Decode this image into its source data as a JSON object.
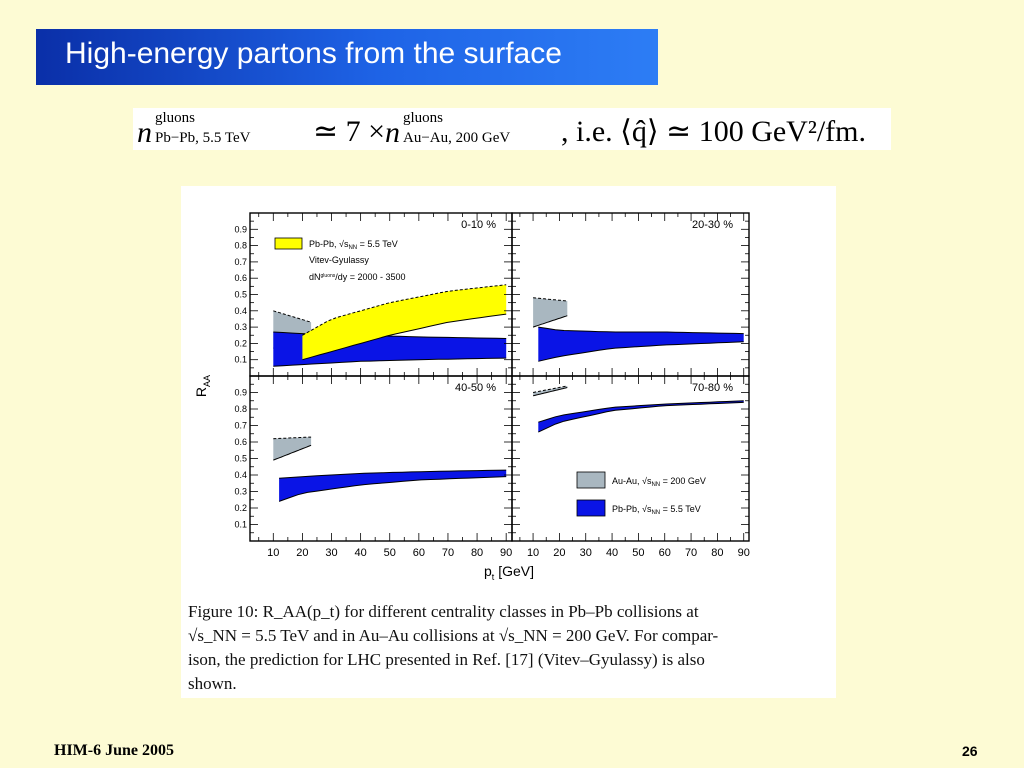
{
  "slide": {
    "title": "High-energy partons from the surface",
    "footer_left": "HIM-6 June 2005",
    "page_number": "26"
  },
  "formula": {
    "lhs_n": "n",
    "lhs_sup": "gluons",
    "lhs_sub": "Pb−Pb, 5.5 TeV",
    "relation": "≃ 7 ×",
    "rhs_n": "n",
    "rhs_sup": "gluons",
    "rhs_sub": "Au−Au, 200 GeV",
    "tail": ", i.e. ⟨q̂⟩ ≃ 100 GeV²/fm."
  },
  "figure": {
    "ylabel": "R",
    "ylabel_sub": "AA",
    "xlabel": "p",
    "xlabel_sub": "t",
    "xlabel_unit": " [GeV]",
    "yticks": [
      "0.1",
      "0.2",
      "0.3",
      "0.4",
      "0.5",
      "0.6",
      "0.7",
      "0.8",
      "0.9"
    ],
    "xticks": [
      "10",
      "20",
      "30",
      "40",
      "50",
      "60",
      "70",
      "80",
      "90"
    ],
    "panels": [
      "0-10 %",
      "20-30 %",
      "40-50 %",
      "70-80 %"
    ],
    "legend_top": {
      "line1": "Pb-Pb,  √s",
      "line1_sub": "NN",
      "line1_end": " = 5.5 TeV",
      "line2": "Vitev-Gyulassy",
      "line3": "dN",
      "line3_sup": "gluons",
      "line3_end": "/dy = 2000 - 3500"
    },
    "legend_bottom": [
      {
        "text": "Au-Au,  √s",
        "sub": "NN",
        "end": " = 200 GeV",
        "color": "#a9b7c0"
      },
      {
        "text": "Pb-Pb,  √s",
        "sub": "NN",
        "end": " = 5.5 TeV",
        "color": "#0a14e6"
      }
    ],
    "caption": {
      "line1": "Figure 10:  R_AA(p_t) for different centrality classes in Pb–Pb collisions at",
      "line2": "√s_NN = 5.5 TeV and in Au–Au collisions at √s_NN = 200 GeV. For compar-",
      "line3": "ison, the prediction for LHC presented in Ref. [17] (Vitev–Gyulassy) is also",
      "line4": "shown."
    }
  },
  "chart_data": {
    "type": "area",
    "xlabel": "p_t [GeV]",
    "ylabel": "R_AA",
    "xlim": [
      2,
      92
    ],
    "ylim": [
      0,
      1
    ],
    "panels": [
      {
        "name": "0-10 %",
        "series": [
          {
            "name": "Au-Au, √sNN = 200 GeV",
            "color": "#a9b7c0",
            "x": [
              10,
              23
            ],
            "upper": [
              0.4,
              0.33
            ],
            "lower": [
              0.17,
              0.25
            ]
          },
          {
            "name": "Pb-Pb, √sNN = 5.5 TeV",
            "color": "#0a14e6",
            "x": [
              10,
              20,
              40,
              60,
              90
            ],
            "upper": [
              0.27,
              0.26,
              0.25,
              0.24,
              0.23
            ],
            "lower": [
              0.06,
              0.07,
              0.09,
              0.1,
              0.11
            ]
          },
          {
            "name": "Vitev-Gyulassy",
            "color": "#ffff00",
            "x": [
              20,
              30,
              50,
              70,
              90
            ],
            "upper": [
              0.25,
              0.35,
              0.45,
              0.52,
              0.56
            ],
            "lower": [
              0.1,
              0.15,
              0.25,
              0.33,
              0.38
            ]
          }
        ]
      },
      {
        "name": "20-30 %",
        "series": [
          {
            "name": "Au-Au, √sNN = 200 GeV",
            "color": "#a9b7c0",
            "x": [
              10,
              23
            ],
            "upper": [
              0.48,
              0.46
            ],
            "lower": [
              0.3,
              0.37
            ]
          },
          {
            "name": "Pb-Pb, √sNN = 5.5 TeV",
            "color": "#0a14e6",
            "x": [
              12,
              20,
              40,
              60,
              90
            ],
            "upper": [
              0.3,
              0.28,
              0.27,
              0.27,
              0.26
            ],
            "lower": [
              0.09,
              0.12,
              0.17,
              0.19,
              0.21
            ]
          }
        ]
      },
      {
        "name": "40-50 %",
        "series": [
          {
            "name": "Au-Au, √sNN = 200 GeV",
            "color": "#a9b7c0",
            "x": [
              10,
              23
            ],
            "upper": [
              0.62,
              0.63
            ],
            "lower": [
              0.49,
              0.58
            ]
          },
          {
            "name": "Pb-Pb, √sNN = 5.5 TeV",
            "color": "#0a14e6",
            "x": [
              12,
              20,
              40,
              60,
              90
            ],
            "upper": [
              0.38,
              0.39,
              0.41,
              0.42,
              0.43
            ],
            "lower": [
              0.24,
              0.29,
              0.34,
              0.37,
              0.39
            ]
          }
        ]
      },
      {
        "name": "70-80 %",
        "series": [
          {
            "name": "Au-Au, √sNN = 200 GeV",
            "color": "#a9b7c0",
            "x": [
              10,
              23
            ],
            "upper": [
              0.9,
              0.94
            ],
            "lower": [
              0.88,
              0.93
            ]
          },
          {
            "name": "Pb-Pb, √sNN = 5.5 TeV",
            "color": "#0a14e6",
            "x": [
              12,
              20,
              40,
              60,
              90
            ],
            "upper": [
              0.72,
              0.76,
              0.81,
              0.83,
              0.85
            ],
            "lower": [
              0.66,
              0.72,
              0.79,
              0.82,
              0.84
            ]
          }
        ]
      }
    ]
  }
}
